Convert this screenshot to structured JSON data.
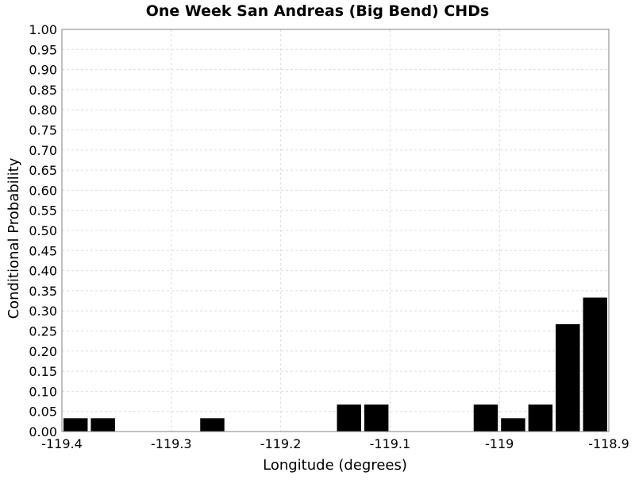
{
  "chart_data": {
    "type": "bar",
    "title": "One Week San Andreas (Big Bend) CHDs",
    "xlabel": "Longitude (degrees)",
    "ylabel": "Conditional Probability",
    "xlim": [
      -119.4,
      -118.9
    ],
    "ylim": [
      0,
      1.0
    ],
    "grid": true,
    "bar_color": "#000000",
    "grid_color": "#dcdcdc",
    "bin_width": 0.025,
    "x_ticks": [
      "-119.4",
      "-119.3",
      "-119.2",
      "-119.1",
      "-119",
      "-118.9"
    ],
    "y_ticks": [
      "0.00",
      "0.05",
      "0.10",
      "0.15",
      "0.20",
      "0.25",
      "0.30",
      "0.35",
      "0.40",
      "0.45",
      "0.50",
      "0.55",
      "0.60",
      "0.65",
      "0.70",
      "0.75",
      "0.80",
      "0.85",
      "0.90",
      "0.95",
      "1.00"
    ],
    "x": [
      -119.3875,
      -119.3625,
      -119.2625,
      -119.1375,
      -119.1125,
      -119.0125,
      -118.9875,
      -118.9625,
      -118.9375,
      -118.9125
    ],
    "values": [
      0.033,
      0.033,
      0.033,
      0.067,
      0.067,
      0.067,
      0.033,
      0.067,
      0.267,
      0.333
    ]
  }
}
